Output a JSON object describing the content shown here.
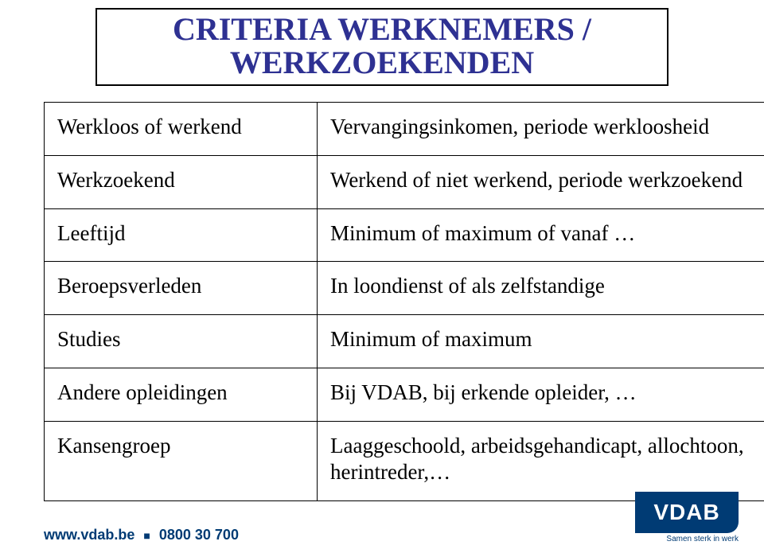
{
  "title": {
    "line1": "CRITERIA WERKNEMERS /",
    "line2": "WERKZOEKENDEN"
  },
  "table": {
    "rows": [
      {
        "left": "Werkloos of werkend",
        "right": "Vervangingsinkomen, periode werkloosheid"
      },
      {
        "left": "Werkzoekend",
        "right": "Werkend of niet werkend, periode werkzoekend"
      },
      {
        "left": "Leeftijd",
        "right": "Minimum of maximum of vanaf …"
      },
      {
        "left": "Beroepsverleden",
        "right": "In loondienst of als zelfstandige"
      },
      {
        "left": "Studies",
        "right": "Minimum of maximum"
      },
      {
        "left": "Andere opleidingen",
        "right": "Bij VDAB, bij erkende opleider, …"
      },
      {
        "left": "Kansengroep",
        "right": "Laaggeschoold, arbeidsgehandicapt, allochtoon, herintreder,…"
      }
    ]
  },
  "footer": {
    "url": "www.vdab.be",
    "phone": "0800 30 700",
    "logo_text": "VDAB",
    "logo_tag": "Samen sterk in werk"
  },
  "colors": {
    "title_text": "#2e3192",
    "border": "#000000",
    "footer_text": "#003b74",
    "logo_bg": "#003b74",
    "logo_text": "#ffffff",
    "background": "#ffffff"
  }
}
